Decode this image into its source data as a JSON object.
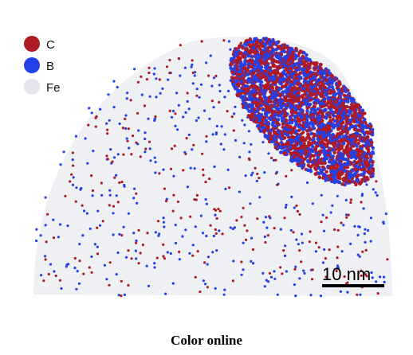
{
  "figure": {
    "legend": [
      {
        "label": "C",
        "color": "#b01a24"
      },
      {
        "label": "B",
        "color": "#2440e8"
      },
      {
        "label": "Fe",
        "color": "#e4e4ec"
      }
    ],
    "scale_bar": {
      "label": "10 nm"
    },
    "caption": "Color online"
  }
}
